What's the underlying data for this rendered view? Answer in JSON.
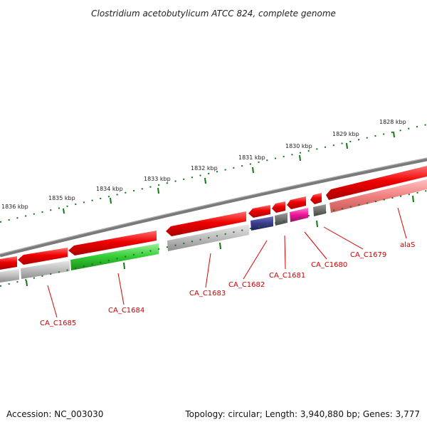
{
  "title": "Clostridium acetobutylicum ATCC 824, complete genome",
  "accession": "Accession: NC_003030",
  "summary": "Topology: circular; Length: 3,940,880 bp; Genes: 3,777",
  "scale_labels": [
    "1828 kbp",
    "1829 kbp",
    "1830 kbp",
    "1831 kbp",
    "1832 kbp",
    "1833 kbp",
    "1834 kbp",
    "1835 kbp",
    "1836 kbp"
  ],
  "gene_labels": [
    "alaS",
    "CA_C1679",
    "CA_C1680",
    "CA_C1681",
    "CA_C1682",
    "CA_C1683",
    "CA_C1684",
    "CA_C1685"
  ],
  "colors": {
    "backbone": "#7a7a7a",
    "forward_gene": "#ee0000",
    "alaS": "#f08080",
    "gray_gene": "#bdbdbd",
    "dark_gray_gene": "#6f6f6f",
    "navy_gene": "#3a3a8c",
    "magenta_gene": "#ee1199",
    "green_gene": "#33cc33",
    "tick": "#117711",
    "label": "#cc0000"
  }
}
